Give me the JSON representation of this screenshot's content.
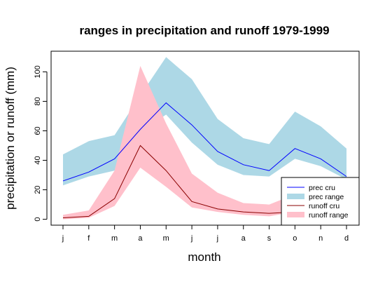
{
  "chart_data": {
    "type": "area",
    "title": "ranges in precipitation and runoff 1979-1999",
    "xlabel": "month",
    "ylabel": "precipitation or runoff (mm)",
    "categories": [
      "j",
      "f",
      "m",
      "a",
      "m",
      "j",
      "j",
      "a",
      "s",
      "o",
      "n",
      "d"
    ],
    "yticks": [
      0,
      20,
      40,
      60,
      80,
      100
    ],
    "ylim": [
      -4,
      114
    ],
    "legend_position": "bottom-right",
    "series": [
      {
        "name": "prec range",
        "kind": "band",
        "color": "#add8e6",
        "lower": [
          23,
          29,
          33,
          59,
          71,
          52,
          37,
          30,
          29,
          41,
          36,
          27
        ],
        "upper": [
          44,
          53,
          57,
          84,
          110,
          95,
          68,
          55,
          51,
          73,
          63,
          48
        ]
      },
      {
        "name": "runoff range",
        "kind": "band",
        "color": "#ffc0cb",
        "lower": [
          0,
          1,
          9,
          35,
          22,
          8,
          5,
          3,
          2,
          5,
          6,
          3
        ],
        "upper": [
          3,
          6,
          33,
          104,
          65,
          31,
          18,
          11,
          10,
          17,
          13,
          9
        ]
      },
      {
        "name": "prec cru",
        "kind": "line",
        "color": "#0000ff",
        "values": [
          26,
          32,
          41,
          61,
          79,
          64,
          46,
          37,
          33,
          48,
          41,
          29
        ]
      },
      {
        "name": "runoff cru",
        "kind": "line",
        "color": "#8b0000",
        "values": [
          1,
          2,
          14,
          50,
          33,
          12,
          7,
          5,
          4,
          5,
          5,
          3
        ]
      }
    ],
    "legend": [
      {
        "label": "prec cru",
        "style": "line",
        "color": "#0000ff"
      },
      {
        "label": "prec range",
        "style": "band",
        "color": "#add8e6"
      },
      {
        "label": "runoff cru",
        "style": "line",
        "color": "#8b0000"
      },
      {
        "label": "runoff range",
        "style": "band",
        "color": "#ffc0cb"
      }
    ]
  }
}
